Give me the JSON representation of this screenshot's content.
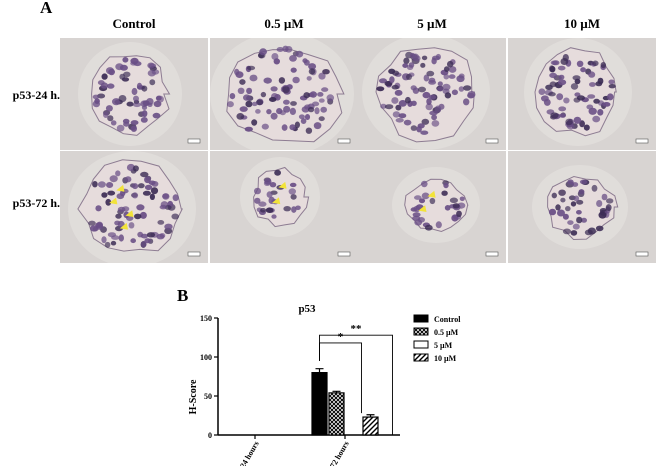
{
  "panel_a": {
    "letter": "A",
    "columns": [
      "Control",
      "0.5 µM",
      "5 µM",
      "10 µM"
    ],
    "rows": [
      "p53-24 h.",
      "p53-72 h."
    ]
  },
  "panel_b": {
    "letter": "B"
  },
  "colors": {
    "tissue_bg": "#d8d4d2",
    "cell_stroma": "#e6dcdc",
    "nucleus_purple": "#6a4f86",
    "nucleus_dark": "#3c2c55",
    "arrow_yellow": "#f2e33a"
  },
  "chart_data": {
    "type": "bar",
    "title": "p53",
    "xlabel": "",
    "ylabel": "H-Score",
    "ylim": [
      0,
      150
    ],
    "yticks": [
      0,
      50,
      100,
      150
    ],
    "categories": [
      "24 hours",
      "72 hours"
    ],
    "series": [
      {
        "name": "Control",
        "values": [
          0,
          80
        ],
        "errors": [
          0,
          5
        ],
        "pattern": "solid-black"
      },
      {
        "name": "0.5 µM",
        "values": [
          0,
          54
        ],
        "errors": [
          0,
          2
        ],
        "pattern": "crosshatch"
      },
      {
        "name": "5 µM",
        "values": [
          0,
          0
        ],
        "errors": [
          0,
          0
        ],
        "pattern": "white"
      },
      {
        "name": "10 µM",
        "values": [
          0,
          23
        ],
        "errors": [
          0,
          3
        ],
        "pattern": "diagonal"
      }
    ],
    "significance": [
      {
        "label": "*",
        "between": [
          "Control",
          "10 µM"
        ]
      },
      {
        "label": "**",
        "between": [
          "Control",
          "10 µM"
        ]
      }
    ],
    "legend_position": "right"
  }
}
